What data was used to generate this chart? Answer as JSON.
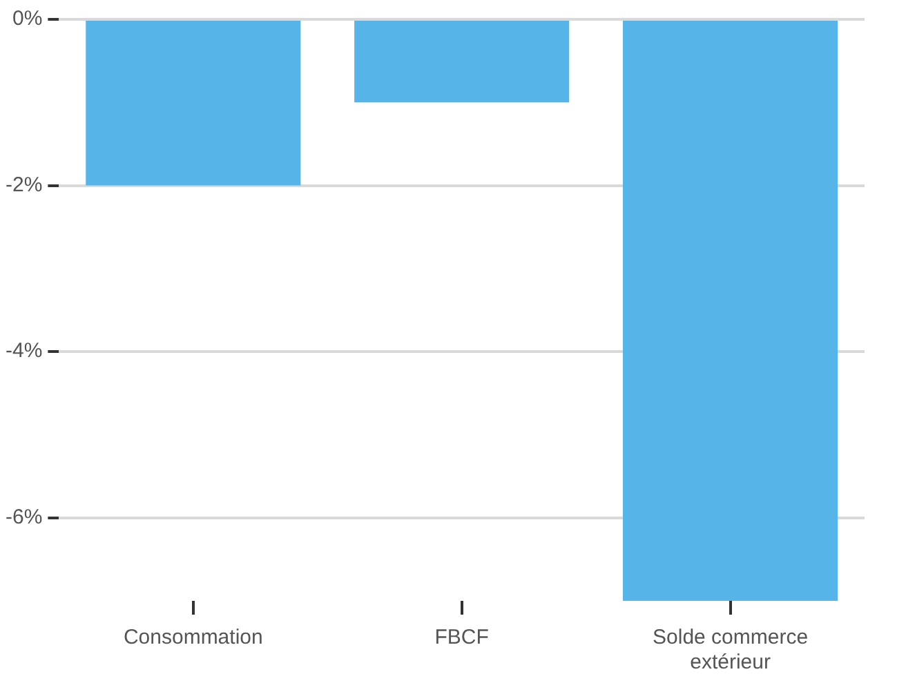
{
  "chart_data": {
    "type": "bar",
    "categories": [
      "Consommation",
      "FBCF",
      "Solde commerce extérieur"
    ],
    "values": [
      -2,
      -1,
      -7
    ],
    "color": "#56b4e9",
    "ylim": [
      -7,
      0
    ],
    "yticks": [
      {
        "value": 0,
        "label": "0%"
      },
      {
        "value": -2,
        "label": "-2%"
      },
      {
        "value": -4,
        "label": "-4%"
      },
      {
        "value": -6,
        "label": "-6%"
      }
    ],
    "grid": "y",
    "legend": false
  }
}
